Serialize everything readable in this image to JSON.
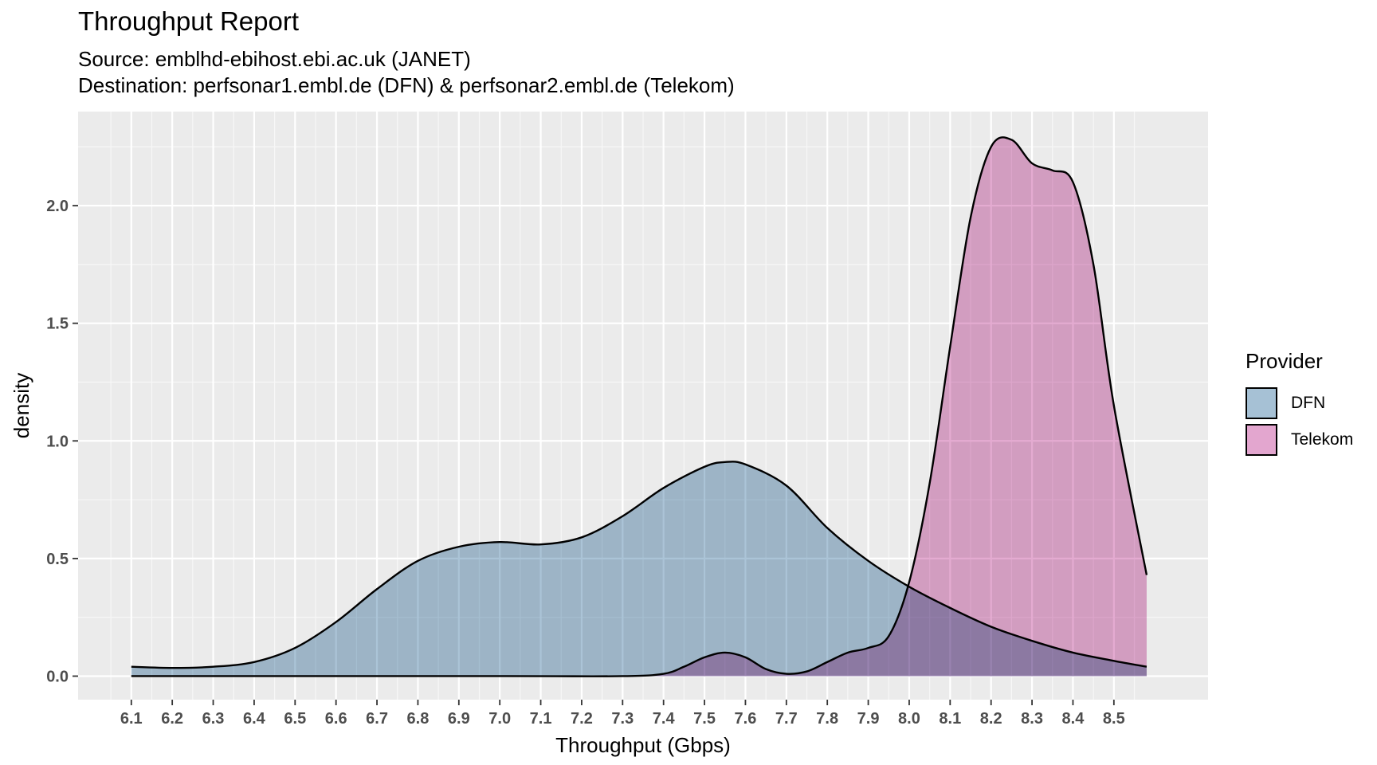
{
  "chart_data": {
    "type": "area",
    "title": "Throughput Report",
    "subtitle": [
      "Source: emblhd-ebihost.ebi.ac.uk (JANET)",
      "Destination: perfsonar1.embl.de (DFN) & perfsonar2.embl.de (Telekom)"
    ],
    "xlabel": "Throughput (Gbps)",
    "ylabel": "density",
    "xlim": [
      5.97,
      8.73
    ],
    "ylim": [
      -0.1,
      2.4
    ],
    "x_ticks": [
      "6.1",
      "6.2",
      "6.3",
      "6.4",
      "6.5",
      "6.6",
      "6.7",
      "6.8",
      "6.9",
      "7.0",
      "7.1",
      "7.2",
      "7.3",
      "7.4",
      "7.5",
      "7.6",
      "7.7",
      "7.8",
      "7.9",
      "8.0",
      "8.1",
      "8.2",
      "8.3",
      "8.4",
      "8.5"
    ],
    "y_ticks": [
      "0.0",
      "0.5",
      "1.0",
      "1.5",
      "2.0"
    ],
    "grid": true,
    "legend": {
      "title": "Provider",
      "position": "right"
    },
    "series": [
      {
        "name": "DFN",
        "color": "#a6c1d5",
        "x": [
          6.1,
          6.2,
          6.3,
          6.4,
          6.5,
          6.6,
          6.7,
          6.8,
          6.9,
          7.0,
          7.1,
          7.2,
          7.3,
          7.4,
          7.5,
          7.55,
          7.6,
          7.7,
          7.8,
          7.9,
          8.0,
          8.1,
          8.2,
          8.3,
          8.4,
          8.5,
          8.58
        ],
        "y": [
          0.04,
          0.035,
          0.04,
          0.06,
          0.12,
          0.23,
          0.37,
          0.49,
          0.55,
          0.57,
          0.56,
          0.59,
          0.68,
          0.8,
          0.89,
          0.91,
          0.9,
          0.81,
          0.63,
          0.49,
          0.38,
          0.29,
          0.21,
          0.15,
          0.1,
          0.065,
          0.04
        ]
      },
      {
        "name": "Telekom",
        "color": "#e3a6cf",
        "x": [
          6.1,
          7.0,
          7.3,
          7.4,
          7.45,
          7.5,
          7.55,
          7.6,
          7.65,
          7.7,
          7.75,
          7.8,
          7.85,
          7.9,
          7.95,
          8.0,
          8.05,
          8.1,
          8.15,
          8.2,
          8.25,
          8.3,
          8.35,
          8.4,
          8.45,
          8.5,
          8.58
        ],
        "y": [
          0.0,
          0.0,
          0.0,
          0.01,
          0.04,
          0.08,
          0.1,
          0.08,
          0.03,
          0.01,
          0.02,
          0.06,
          0.1,
          0.12,
          0.17,
          0.4,
          0.82,
          1.4,
          1.95,
          2.25,
          2.28,
          2.18,
          2.15,
          2.1,
          1.75,
          1.15,
          0.43
        ]
      }
    ]
  }
}
